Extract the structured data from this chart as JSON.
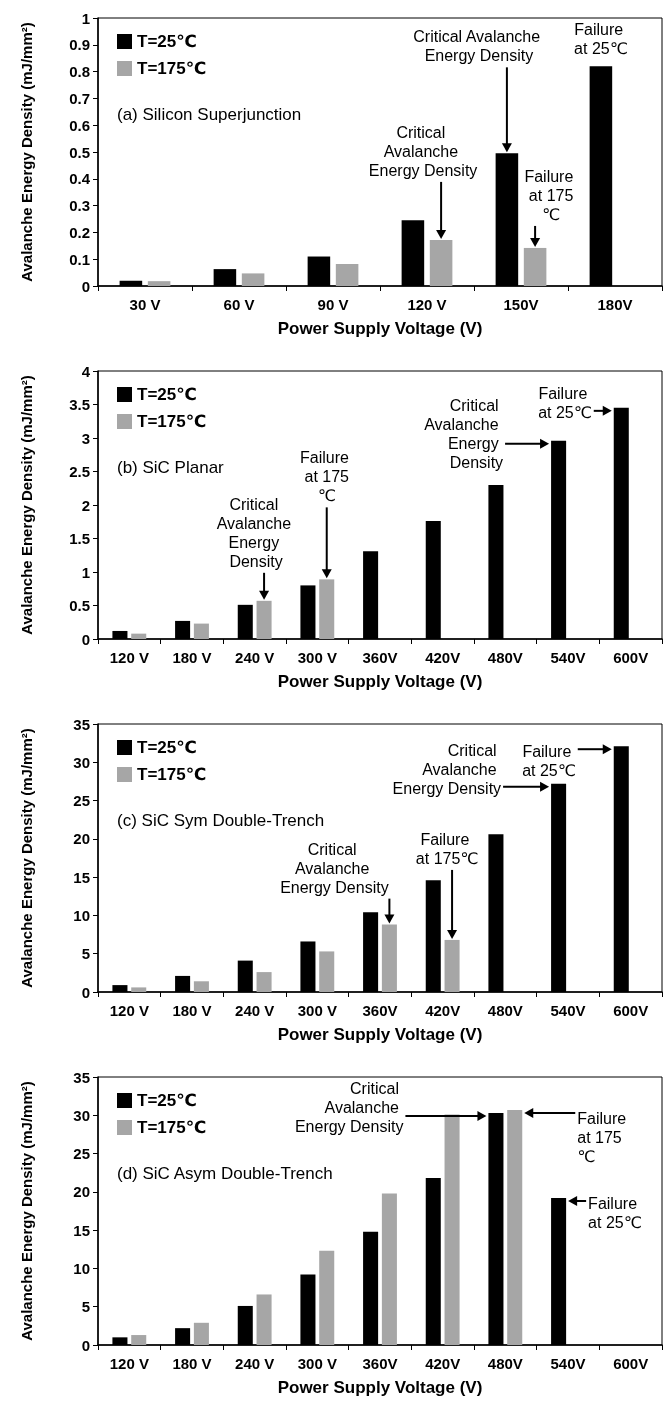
{
  "chart_data": [
    {
      "type": "bar",
      "title": "(a) Silicon Superjunction",
      "xlabel": "Power Supply Voltage (V)",
      "ylabel": "Avalanche Energy Density (mJ/mm²)",
      "categories": [
        "30 V",
        "60 V",
        "90 V",
        "120 V",
        "150V",
        "180V"
      ],
      "series": [
        {
          "name": "T=25℃",
          "color": "#000000",
          "values": [
            0.02,
            0.063,
            0.11,
            0.245,
            0.495,
            0.82
          ]
        },
        {
          "name": "T=175℃",
          "color": "#a6a6a6",
          "values": [
            0.018,
            0.047,
            0.082,
            0.172,
            0.142,
            null
          ]
        }
      ],
      "ylim": [
        0,
        1
      ],
      "yticks": [
        0,
        0.1,
        0.2,
        0.3,
        0.4,
        0.5,
        0.6,
        0.7,
        0.8,
        0.9,
        1
      ],
      "grid": false,
      "legend": "top left",
      "annotations": [
        "Critical Avalanche Energy Density",
        "Critical Avalanche Energy Density",
        {
          "text": "Failure at 175℃",
          "x": "150V",
          "y": 0.142
        },
        {
          "text": "Failure at 25℃",
          "x": "180V",
          "y": 0.82
        }
      ]
    },
    {
      "type": "bar",
      "title": "(b) SiC Planar",
      "xlabel": "Power Supply Voltage (V)",
      "ylabel": "Avalanche Energy Density (mJ/mm²)",
      "categories": [
        "120 V",
        "180 V",
        "240 V",
        "300 V",
        "360V",
        "420V",
        "480V",
        "540V",
        "600V"
      ],
      "series": [
        {
          "name": "T=25℃",
          "color": "#000000",
          "values": [
            0.12,
            0.27,
            0.51,
            0.8,
            1.31,
            1.76,
            2.3,
            2.96,
            3.45
          ]
        },
        {
          "name": "T=175℃",
          "color": "#a6a6a6",
          "values": [
            0.08,
            0.23,
            0.57,
            0.89,
            null,
            null,
            null,
            null,
            null
          ]
        }
      ],
      "ylim": [
        0,
        4
      ],
      "yticks": [
        0,
        0.5,
        1,
        1.5,
        2,
        2.5,
        3,
        3.5,
        4
      ],
      "grid": false,
      "legend": "top left",
      "annotations": [
        {
          "text": "Critical Avalanche Energy Density",
          "x": "240 V",
          "y": 0.57
        },
        "Failure at 175℃",
        "Critical Avalanche Energy Density",
        {
          "text": "Failure at 25℃",
          "x": "600V",
          "y": 3.45
        }
      ]
    },
    {
      "type": "bar",
      "title": "(c) SiC Sym Double-Trench",
      "xlabel": "Power Supply Voltage (V)",
      "ylabel": "Avalanche Energy Density (mJ/mm²)",
      "categories": [
        "120 V",
        "180 V",
        "240 V",
        "300 V",
        "360V",
        "420V",
        "480V",
        "540V",
        "600V"
      ],
      "series": [
        {
          "name": "T=25℃",
          "color": "#000000",
          "values": [
            0.9,
            2.1,
            4.1,
            6.6,
            10.4,
            14.6,
            20.6,
            27.2,
            32.1
          ]
        },
        {
          "name": "T=175℃",
          "color": "#a6a6a6",
          "values": [
            0.6,
            1.4,
            2.6,
            5.3,
            8.8,
            6.8,
            null,
            null,
            null
          ]
        }
      ],
      "ylim": [
        0,
        35
      ],
      "yticks": [
        0,
        5,
        10,
        15,
        20,
        25,
        30,
        35
      ],
      "grid": false,
      "legend": "top left",
      "annotations": [
        {
          "text": "Critical Avalanche Energy Density",
          "x": "360V",
          "y": 8.8
        },
        "Failure at 175℃",
        "Critical Avalanche Energy Density",
        "Failure at 25℃"
      ]
    },
    {
      "type": "bar",
      "title": "(d) SiC Asym Double-Trench",
      "xlabel": "Power Supply Voltage (V)",
      "ylabel": "Avalanche Energy Density (mJ/mm²)",
      "categories": [
        "120 V",
        "180 V",
        "240 V",
        "300 V",
        "360V",
        "420V",
        "480V",
        "540V",
        "600V"
      ],
      "series": [
        {
          "name": "T=25℃",
          "color": "#000000",
          "values": [
            1.0,
            2.2,
            5.1,
            9.2,
            14.8,
            21.8,
            30.3,
            19.2,
            null
          ]
        },
        {
          "name": "T=175℃",
          "color": "#a6a6a6",
          "values": [
            1.3,
            2.9,
            6.6,
            12.3,
            19.8,
            30.1,
            30.7,
            null,
            null
          ]
        }
      ],
      "ylim": [
        0,
        35
      ],
      "yticks": [
        0,
        5,
        10,
        15,
        20,
        25,
        30,
        35
      ],
      "grid": false,
      "legend": "top left",
      "annotations": [
        "Critical Avalanche Energy Density",
        "Failure at 175℃",
        {
          "text": "Failure at 25℃",
          "x": "540V",
          "y": 19.2
        }
      ]
    }
  ]
}
